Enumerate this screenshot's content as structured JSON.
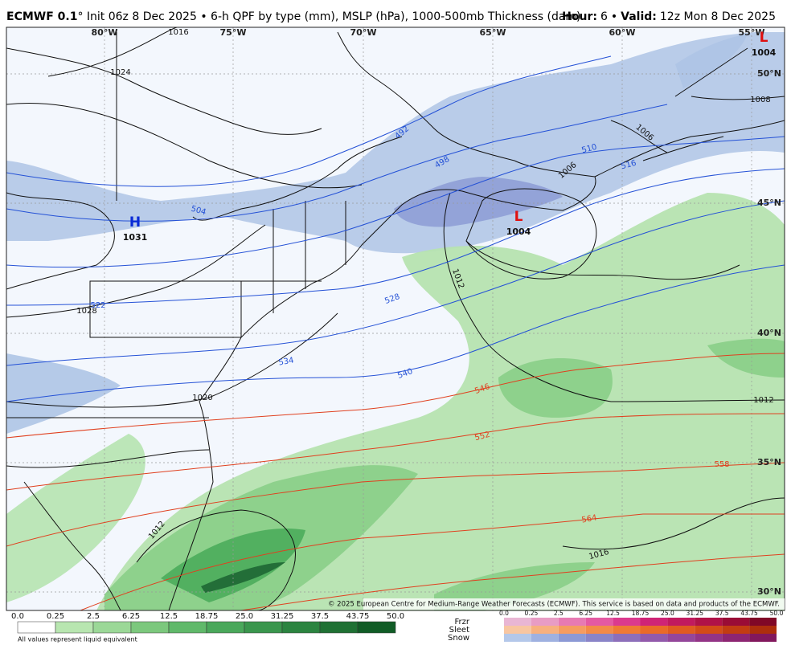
{
  "header": {
    "model": "ECMWF 0.1",
    "run": "° Init 06z 8 Dec 2025 • 6-h QPF by type (mm), MSLP (hPa), 1000-500mb Thickness (dam)",
    "hour_label": "Hour:",
    "hour": "6",
    "separator": "•",
    "valid_label": "Valid:",
    "valid": "12z Mon 8 Dec 2025"
  },
  "map": {
    "longitudes": [
      "80°W",
      "75°W",
      "70°W",
      "65°W",
      "60°W",
      "55°W"
    ],
    "latitudes": [
      "50°N",
      "45°N",
      "40°N",
      "35°N",
      "30°N"
    ],
    "pressure_centers": [
      {
        "symbol": "H",
        "value": "1031"
      },
      {
        "symbol": "L",
        "value": "1004"
      },
      {
        "symbol": "L",
        "value": "1004"
      }
    ],
    "isobar_labels": [
      "1016",
      "1024",
      "1028",
      "1020",
      "1012",
      "1012",
      "1016",
      "1012",
      "1008",
      "1006",
      "1006"
    ],
    "thickness_labels": [
      "492",
      "498",
      "504",
      "510",
      "516",
      "522",
      "528",
      "534",
      "540",
      "546",
      "552",
      "558",
      "564"
    ],
    "copyright": "© 2025 European Centre for Medium-Range Weather Forecasts (ECMWF). This service is based on data and products of the ECMWF."
  },
  "legend": {
    "rain_labels": [
      "0.0",
      "0.25",
      "2.5",
      "6.25",
      "12.5",
      "18.75",
      "25.0",
      "31.25",
      "37.5",
      "43.75",
      "50.0"
    ],
    "note": "All values represent liquid equivalent",
    "ptype_names": [
      "Frzr",
      "Sleet",
      "Snow"
    ],
    "ptype_labels": [
      "0.0",
      "0.25",
      "2.5",
      "6.25",
      "12.5",
      "18.75",
      "25.0",
      "31.25",
      "37.5",
      "43.75",
      "50.0"
    ]
  }
}
